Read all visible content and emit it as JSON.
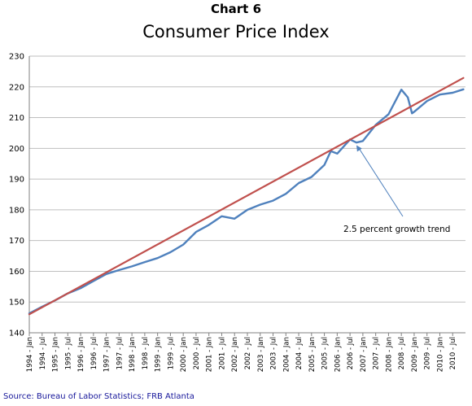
{
  "title": "Chart 6",
  "subtitle": "Consumer Price Index",
  "source": "Source: Bureau of Labor Statistics;  FRB Atlanta",
  "colors": {
    "cpi": "#4f81bd",
    "trend": "#c0504d",
    "arrow": "#4f81bd",
    "grid": "#bfbfbf"
  },
  "chart_data": {
    "type": "line",
    "title": "Consumer Price Index",
    "xlabel": "",
    "ylabel": "",
    "ylim": [
      140,
      230
    ],
    "yticks": [
      140,
      150,
      160,
      170,
      180,
      190,
      200,
      210,
      220,
      230
    ],
    "xticks": [
      "1994 - Jan",
      "1994 - Jul",
      "1995 - Jan",
      "1995 - Jul",
      "1996 - Jan",
      "1996 - Jul",
      "1997 - Jan",
      "1997 - Jul",
      "1998 - Jan",
      "1998 - Jul",
      "1999 - Jan",
      "1999 - Jul",
      "2000 - Jan",
      "2000 - Jul",
      "2001 - Jan",
      "2001 - Jul",
      "2002 - Jan",
      "2002 - Jul",
      "2003 - Jan",
      "2003 - Jul",
      "2004 - Jan",
      "2004 - Jul",
      "2005 - Jan",
      "2005 - Jul",
      "2006 - Jan",
      "2006 - Jul",
      "2007 - Jan",
      "2007 - Jul",
      "2008 - Jan",
      "2008 - Jul",
      "2009 - Jan",
      "2009 - Jul",
      "2010 - Jan",
      "2010 - Jul"
    ],
    "grid": true,
    "legend": "none",
    "series": [
      {
        "key": "cpi",
        "x": [
          "1994 - Jan",
          "1994 - Jul",
          "1995 - Jan",
          "1995 - Jul",
          "1996 - Jan",
          "1996 - Jul",
          "1997 - Jan",
          "1997 - Jul",
          "1998 - Jan",
          "1998 - Jul",
          "1999 - Jan",
          "1999 - Jul",
          "2000 - Jan",
          "2000 - Jul",
          "2001 - Jan",
          "2001 - Jul",
          "2002 - Jan",
          "2002 - Jul",
          "2003 - Jan",
          "2003 - Jul",
          "2004 - Jan",
          "2004 - Jul",
          "2005 - Jan",
          "2005 - Jul",
          "2005 - Oct",
          "2006 - Jan",
          "2006 - Jul",
          "2006 - Oct",
          "2007 - Jan",
          "2007 - Jul",
          "2008 - Jan",
          "2008 - Jul",
          "2008 - Oct",
          "2008 - Dec",
          "2009 - Jan",
          "2009 - Jul",
          "2010 - Jan",
          "2010 - Jul",
          "2010 - Dec"
        ],
        "values": [
          146.3,
          148.5,
          150.5,
          152.8,
          154.5,
          156.8,
          159.1,
          160.4,
          161.6,
          163.0,
          164.3,
          166.2,
          168.7,
          172.8,
          175.1,
          177.9,
          177.1,
          180.0,
          181.7,
          183.0,
          185.2,
          188.7,
          190.7,
          194.6,
          199.1,
          198.3,
          202.9,
          201.9,
          202.4,
          207.6,
          211.1,
          219.1,
          216.6,
          211.4,
          211.9,
          215.4,
          217.5,
          218.1,
          219.2
        ]
      },
      {
        "key": "trend",
        "label": "2.5 percent growth trend",
        "x": [
          "1994 - Jan",
          "2010 - Dec"
        ],
        "values": [
          146.0,
          222.9
        ]
      }
    ],
    "annotations": [
      {
        "text": "2.5 percent growth trend",
        "target_x": "2006 - Oct",
        "target_y": 201.0
      }
    ]
  }
}
